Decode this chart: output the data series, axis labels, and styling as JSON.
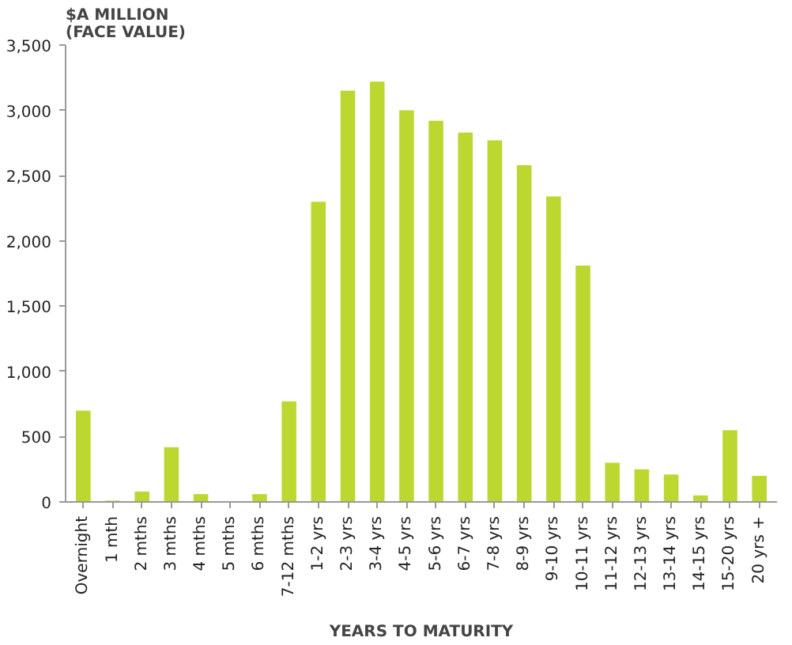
{
  "chart_data": {
    "type": "bar",
    "ylabel": "$A MILLION\n(FACE VALUE)",
    "xlabel": "YEARS TO MATURITY",
    "categories": [
      "Overnight",
      "1 mth",
      "2 mths",
      "3 mths",
      "4 mths",
      "5 mths",
      "6 mths",
      "7-12 mths",
      "1-2 yrs",
      "2-3 yrs",
      "3-4 yrs",
      "4-5 yrs",
      "5-6 yrs",
      "6-7 yrs",
      "7-8 yrs",
      "8-9 yrs",
      "9-10 yrs",
      "10-11 yrs",
      "11-12 yrs",
      "12-13 yrs",
      "13-14 yrs",
      "14-15 yrs",
      "15-20 yrs",
      "20 yrs +"
    ],
    "values": [
      700,
      10,
      80,
      420,
      60,
      5,
      60,
      770,
      2300,
      3150,
      3220,
      3000,
      2920,
      2830,
      2770,
      2580,
      2340,
      1810,
      300,
      250,
      210,
      50,
      550,
      200
    ],
    "color": "#bdd731",
    "ylim": [
      0,
      3500
    ],
    "yticks": [
      {
        "value": 0,
        "label": "0"
      },
      {
        "value": 500,
        "label": "500"
      },
      {
        "value": 1000,
        "label": "1,000"
      },
      {
        "value": 1500,
        "label": "1,500"
      },
      {
        "value": 2000,
        "label": "2,000"
      },
      {
        "value": 2500,
        "label": "2,500"
      },
      {
        "value": 3000,
        "label": "3,000"
      },
      {
        "value": 3500,
        "label": "3,500"
      }
    ],
    "grid": false
  }
}
